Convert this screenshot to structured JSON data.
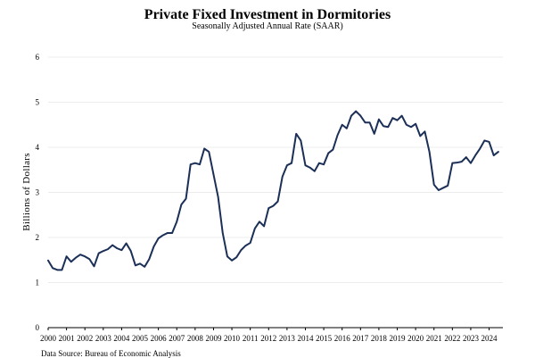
{
  "colors": {
    "line": "#1b2f57",
    "grid": "#ececec",
    "axis": "#000000"
  },
  "chart_data": {
    "type": "line",
    "title": "Private Fixed Investment in Dormitories",
    "subtitle": "Seasonally Adjusted Annual Rate (SAAR)",
    "xlabel": "",
    "ylabel": "Billions of Dollars",
    "source": "Data Source: Bureau of Economic Analysis",
    "ylim": [
      0,
      6
    ],
    "yticks": [
      0,
      1,
      2,
      3,
      4,
      5,
      6
    ],
    "xlim": [
      2000,
      2024.75
    ],
    "xticks": [
      "2000",
      "2001",
      "2002",
      "2003",
      "2004",
      "2005",
      "2006",
      "2007",
      "2008",
      "2009",
      "2010",
      "2011",
      "2012",
      "2013",
      "2014",
      "2015",
      "2016",
      "2017",
      "2018",
      "2019",
      "2020",
      "2021",
      "2022",
      "2023",
      "2024"
    ],
    "grid": "horizontal",
    "legend": "none",
    "series": [
      {
        "frequency": "quarterly",
        "start": "2000Q1",
        "values": [
          1.49,
          1.32,
          1.28,
          1.28,
          1.58,
          1.46,
          1.55,
          1.62,
          1.58,
          1.52,
          1.36,
          1.65,
          1.7,
          1.74,
          1.83,
          1.76,
          1.72,
          1.87,
          1.7,
          1.38,
          1.42,
          1.35,
          1.52,
          1.8,
          1.98,
          2.05,
          2.1,
          2.1,
          2.35,
          2.73,
          2.86,
          3.62,
          3.65,
          3.62,
          3.97,
          3.9,
          3.4,
          2.9,
          2.1,
          1.58,
          1.49,
          1.56,
          1.72,
          1.82,
          1.88,
          2.2,
          2.35,
          2.25,
          2.65,
          2.7,
          2.8,
          3.35,
          3.6,
          3.65,
          4.3,
          4.15,
          3.6,
          3.55,
          3.47,
          3.65,
          3.62,
          3.87,
          3.95,
          4.27,
          4.5,
          4.42,
          4.7,
          4.8,
          4.7,
          4.55,
          4.55,
          4.3,
          4.62,
          4.47,
          4.45,
          4.65,
          4.6,
          4.7,
          4.5,
          4.45,
          4.52,
          4.25,
          4.35,
          3.9,
          3.17,
          3.05,
          3.1,
          3.15,
          3.65,
          3.66,
          3.68,
          3.78,
          3.65,
          3.82,
          3.97,
          4.15,
          4.12,
          3.82,
          3.9
        ]
      }
    ]
  }
}
